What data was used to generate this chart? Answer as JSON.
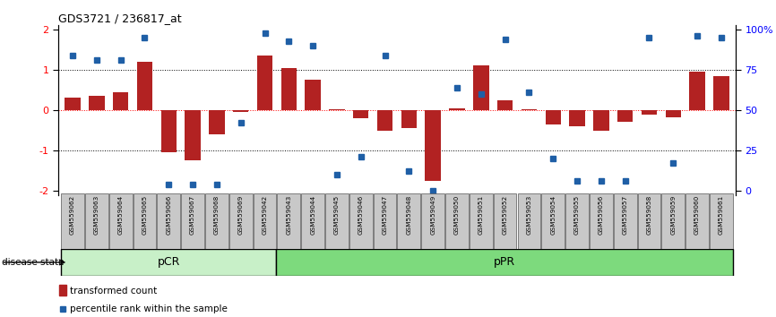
{
  "title": "GDS3721 / 236817_at",
  "samples": [
    "GSM559062",
    "GSM559063",
    "GSM559064",
    "GSM559065",
    "GSM559066",
    "GSM559067",
    "GSM559068",
    "GSM559069",
    "GSM559042",
    "GSM559043",
    "GSM559044",
    "GSM559045",
    "GSM559046",
    "GSM559047",
    "GSM559048",
    "GSM559049",
    "GSM559050",
    "GSM559051",
    "GSM559052",
    "GSM559053",
    "GSM559054",
    "GSM559055",
    "GSM559056",
    "GSM559057",
    "GSM559058",
    "GSM559059",
    "GSM559060",
    "GSM559061"
  ],
  "bar_values": [
    0.3,
    0.35,
    0.45,
    1.2,
    -1.05,
    -1.25,
    -0.6,
    -0.05,
    1.35,
    1.05,
    0.75,
    0.02,
    -0.2,
    -0.5,
    -0.45,
    -1.75,
    0.05,
    1.1,
    0.25,
    0.02,
    -0.35,
    -0.4,
    -0.5,
    -0.28,
    -0.1,
    -0.18,
    0.95,
    0.85
  ],
  "dot_values": [
    1.35,
    1.25,
    1.25,
    1.8,
    -1.85,
    -1.85,
    -1.85,
    -0.3,
    1.9,
    1.7,
    1.6,
    -1.6,
    -1.15,
    1.35,
    -1.5,
    -2.0,
    0.55,
    0.4,
    1.75,
    0.45,
    -1.2,
    -1.75,
    -1.75,
    -1.75,
    1.8,
    -1.3,
    1.85,
    1.8
  ],
  "pCR_count": 9,
  "pPR_count": 19,
  "bar_color": "#b22222",
  "dot_color": "#1f5fa6",
  "ylim": [
    -2.1,
    2.1
  ],
  "yticks": [
    -2,
    -1,
    0,
    1,
    2
  ],
  "right_ytick_labels": [
    "0",
    "25",
    "50",
    "75",
    "100%"
  ],
  "legend_bar": "transformed count",
  "legend_dot": "percentile rank within the sample",
  "disease_state_label": "disease state",
  "pCR_label": "pCR",
  "pPR_label": "pPR",
  "pCR_color": "#c8f0c8",
  "pPR_color": "#7dda7d",
  "tick_label_bg": "#c8c8c8"
}
